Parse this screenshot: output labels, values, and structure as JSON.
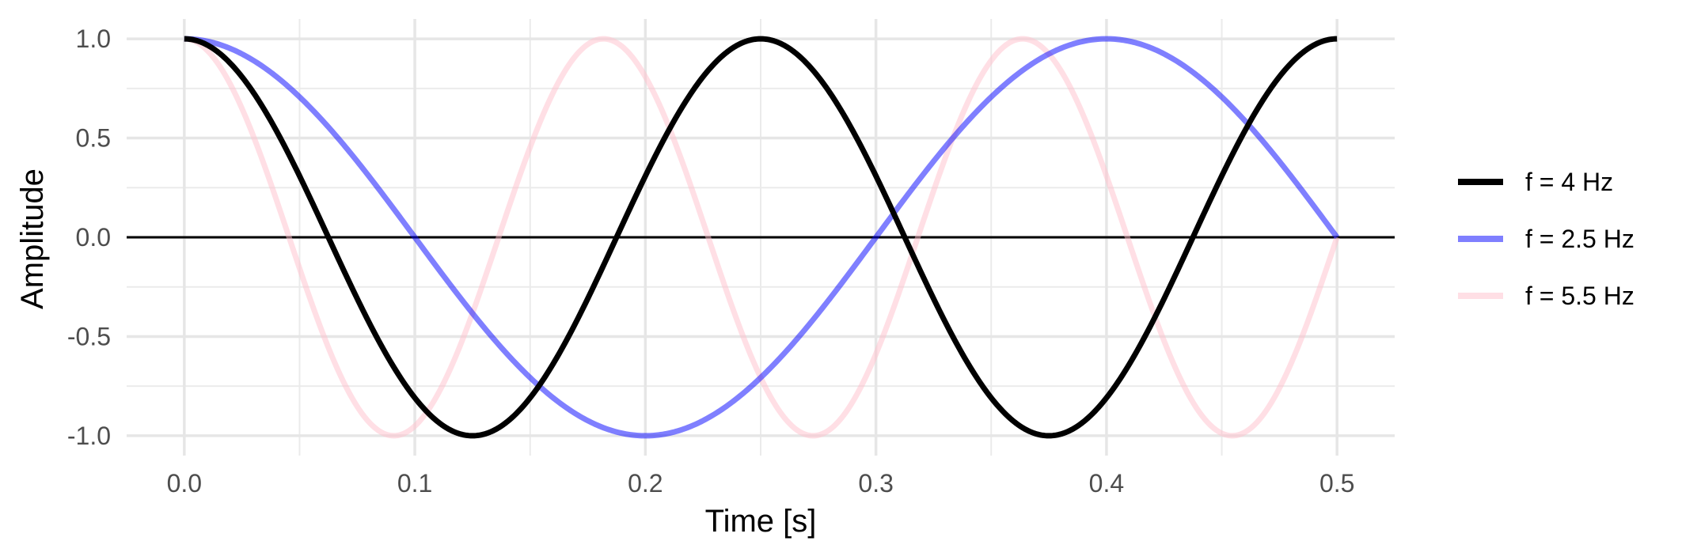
{
  "chart_data": {
    "type": "line",
    "title": "",
    "xlabel": "Time [s]",
    "ylabel": "Amplitude",
    "xlim": [
      -0.025,
      0.525
    ],
    "ylim": [
      -1.1,
      1.1
    ],
    "x_ticks": [
      0.0,
      0.1,
      0.2,
      0.3,
      0.4,
      0.5
    ],
    "x_tick_labels": [
      "0.0",
      "0.1",
      "0.2",
      "0.3",
      "0.4",
      "0.5"
    ],
    "y_ticks": [
      -1.0,
      -0.5,
      0.0,
      0.5,
      1.0
    ],
    "y_tick_labels": [
      "-1.0",
      "-0.5",
      "0.0",
      "0.5",
      "1.0"
    ],
    "grid": true,
    "zero_line": true,
    "legend_position": "right",
    "function": "cos(2*pi*f*t)",
    "t_range": [
      0,
      0.5
    ],
    "series": [
      {
        "name": "f = 4 Hz",
        "frequency_hz": 4,
        "color": "#000000",
        "opacity": 1.0
      },
      {
        "name": "f = 2.5 Hz",
        "frequency_hz": 2.5,
        "color": "#0000ff",
        "opacity": 0.5
      },
      {
        "name": "f = 5.5 Hz",
        "frequency_hz": 5.5,
        "color": "#ffc0cb",
        "opacity": 0.5
      }
    ]
  }
}
